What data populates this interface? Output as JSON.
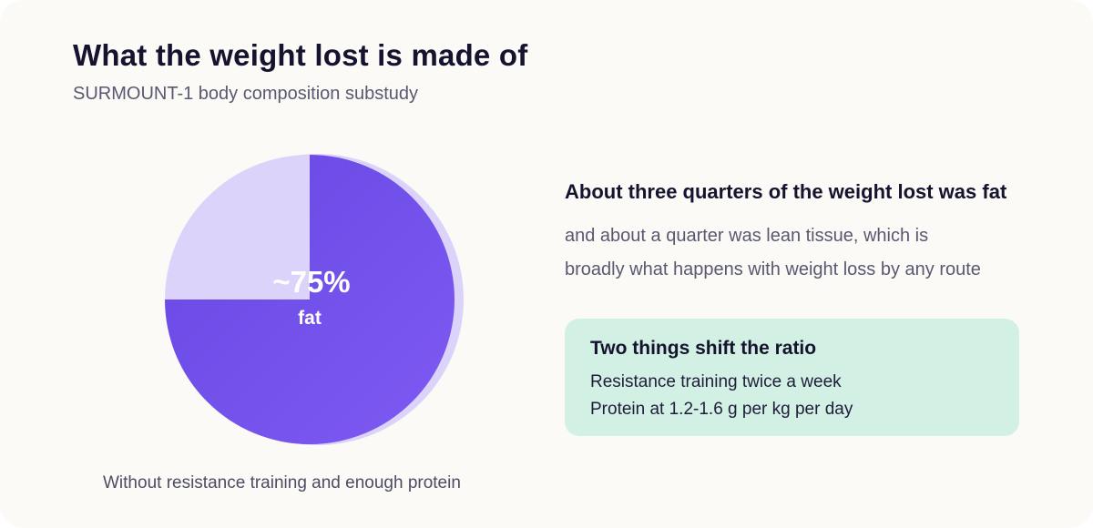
{
  "title": "What the weight lost is made of",
  "subtitle": "SURMOUNT-1 body composition substudy",
  "chart_data": {
    "type": "pie",
    "slices": [
      {
        "name": "fat",
        "value": 75,
        "color": "#6c4de6"
      },
      {
        "name": "lean tissue",
        "value": 25,
        "color": "#dcd3fb"
      }
    ],
    "center_label": "~75%",
    "center_sublabel": "fat",
    "caption": "Without resistance training and enough protein",
    "colors": {
      "fat_gradient_start": "#6747e3",
      "fat_gradient_end": "#7e5af2",
      "lean": "#dcd3fb",
      "shadow": "#dcd3fb"
    }
  },
  "headline": "About three quarters of the weight lost was fat",
  "body_lines": [
    "and about a quarter was lean tissue, which is",
    "broadly what happens with weight loss by any route"
  ],
  "tip_box": {
    "title": "Two things shift the ratio",
    "items": [
      "Resistance training twice a week",
      "Protein at 1.2-1.6 g per kg per day"
    ],
    "background": "#d3f0e4"
  },
  "colors": {
    "card_background": "#fcfaf7",
    "title": "#15132e",
    "muted_text": "#5a5870"
  }
}
